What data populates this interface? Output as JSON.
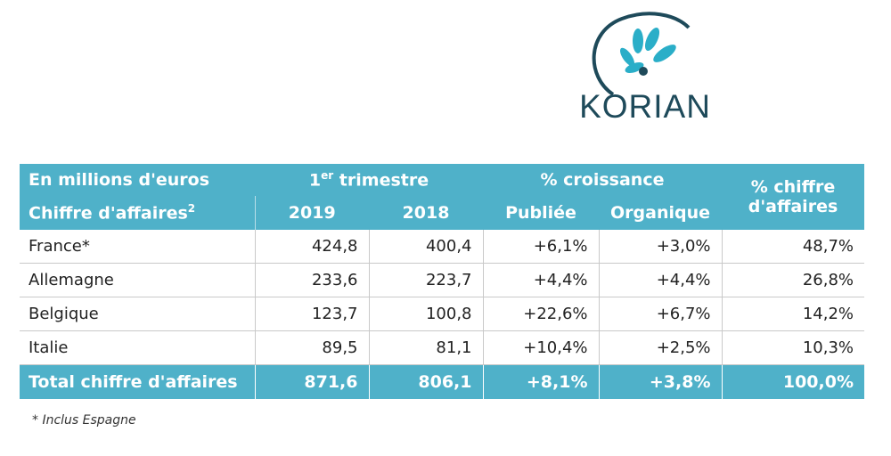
{
  "logo": {
    "text": "KORIAN",
    "colors": {
      "leaf": "#2aaec8",
      "ring": "#1e4a5a"
    }
  },
  "table": {
    "header_row1": {
      "unit": "En millions d'euros",
      "quarter_prefix": "1",
      "quarter_sup": "er",
      "quarter_suffix": " trimestre",
      "growth": "% croissance",
      "share_line1": "% chiffre",
      "share_line2": "d'affaires"
    },
    "header_row2": {
      "metric": "Chiffre d'affaires",
      "metric_sup": "2",
      "year1": "2019",
      "year2": "2018",
      "published": "Publiée",
      "organic": "Organique"
    },
    "rows": [
      {
        "country": "France*",
        "y2019": "424,8",
        "y2018": "400,4",
        "published": "+6,1%",
        "organic": "+3,0%",
        "share": "48,7%"
      },
      {
        "country": "Allemagne",
        "y2019": "233,6",
        "y2018": "223,7",
        "published": "+4,4%",
        "organic": "+4,4%",
        "share": "26,8%"
      },
      {
        "country": "Belgique",
        "y2019": "123,7",
        "y2018": "100,8",
        "published": "+22,6%",
        "organic": "+6,7%",
        "share": "14,2%"
      },
      {
        "country": "Italie",
        "y2019": "89,5",
        "y2018": "81,1",
        "published": "+10,4%",
        "organic": "+2,5%",
        "share": "10,3%"
      }
    ],
    "total": {
      "label": "Total chiffre d'affaires",
      "y2019": "871,6",
      "y2018": "806,1",
      "published": "+8,1%",
      "organic": "+3,8%",
      "share": "100,0%"
    },
    "header_color": "#4fb1c9"
  },
  "footnote": "* Inclus Espagne"
}
